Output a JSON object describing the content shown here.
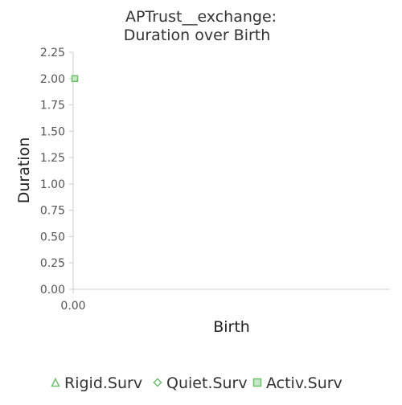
{
  "chart_data": {
    "type": "scatter",
    "title_lines": [
      "APTrust__exchange:",
      "Duration over Birth"
    ],
    "xlabel": "Birth",
    "ylabel": "Duration",
    "x_ticks": [
      "0.00"
    ],
    "y_ticks": [
      "0.00",
      "0.25",
      "0.50",
      "0.75",
      "1.00",
      "1.25",
      "1.50",
      "1.75",
      "2.00",
      "2.25"
    ],
    "ylim": [
      0,
      2.25
    ],
    "xlim": [
      0,
      1
    ],
    "grid": false,
    "legend_position": "bottom",
    "series": [
      {
        "name": "Rigid.Surv",
        "marker": "triangle",
        "color": "#6fbf6f",
        "points": []
      },
      {
        "name": "Quiet.Surv",
        "marker": "diamond",
        "color": "#6fbf6f",
        "points": []
      },
      {
        "name": "Activ.Surv",
        "marker": "square",
        "color": "#6fbf6f",
        "points": [
          {
            "x": 0,
            "y": 2.0
          }
        ]
      }
    ]
  }
}
